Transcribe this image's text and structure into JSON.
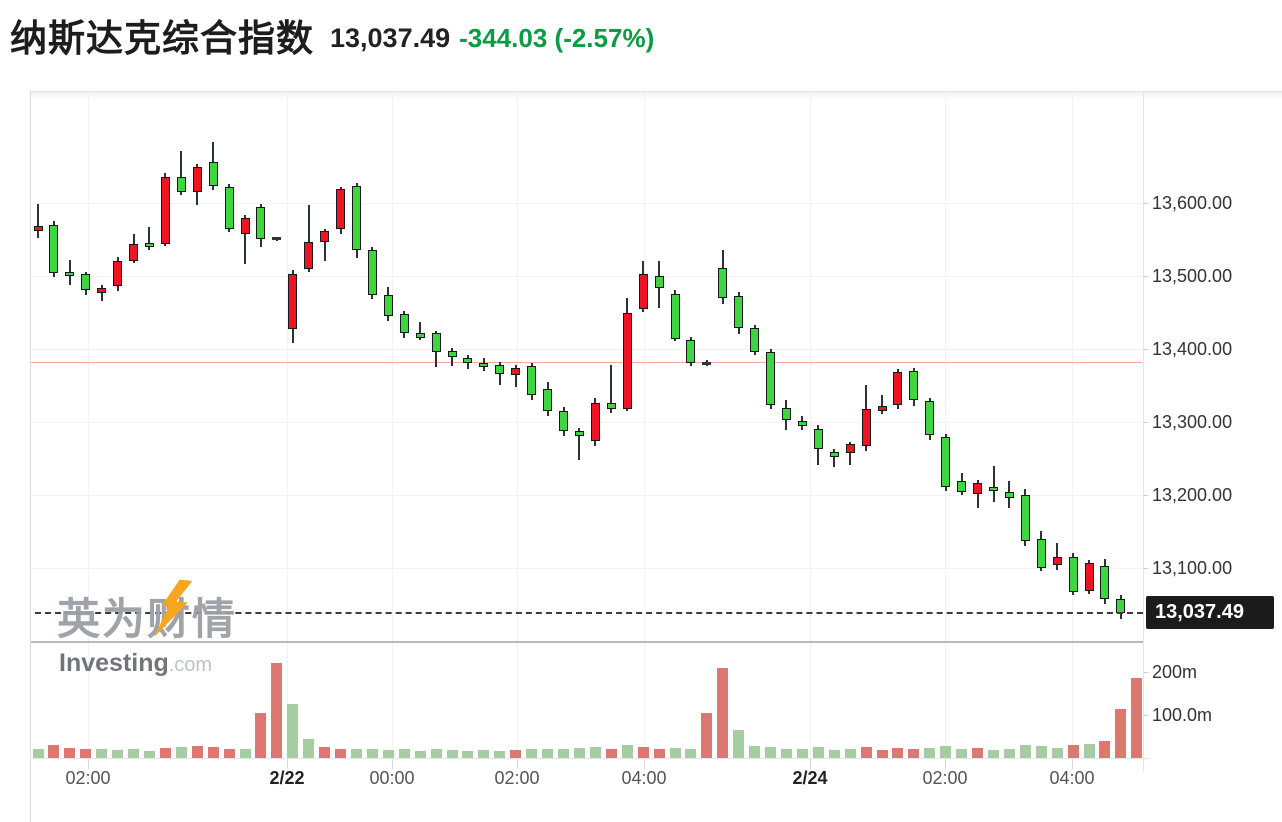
{
  "header": {
    "title": "纳斯达克综合指数",
    "price": "13,037.49",
    "change": "-344.03 (-2.57%)",
    "change_color": "#0a9b43"
  },
  "watermark": {
    "cjk": "英为财情",
    "brand": "Investing",
    "tld": ".com",
    "bolt_color": "#f6a51d"
  },
  "chart_data": {
    "type": "candlestick+volume",
    "symbol": "纳斯达克综合指数",
    "interval": "15min",
    "last_price": 13037.49,
    "prev_close": 13381.52,
    "price_badge_label": "13,037.49",
    "y_axis": {
      "tick_labels": [
        "13,600.00",
        "13,500.00",
        "13,400.00",
        "13,300.00",
        "13,200.00",
        "13,100.00"
      ],
      "tick_values": [
        13600,
        13500,
        13400,
        13300,
        13200,
        13100
      ]
    },
    "volume_axis": {
      "tick_labels": [
        "200m",
        "100.0m"
      ],
      "tick_values": [
        200,
        100
      ],
      "unit": "millions"
    },
    "x_ticks": [
      {
        "label": "02:00",
        "kind": "time"
      },
      {
        "label": "2/22",
        "kind": "date"
      },
      {
        "label": "00:00",
        "kind": "time"
      },
      {
        "label": "02:00",
        "kind": "time"
      },
      {
        "label": "04:00",
        "kind": "time"
      },
      {
        "label": "2/24",
        "kind": "date"
      },
      {
        "label": "02:00",
        "kind": "time"
      },
      {
        "label": "04:00",
        "kind": "time"
      }
    ],
    "colors": {
      "up": "#f01423",
      "down": "#3fd53f",
      "doji": "#333333",
      "vol_up": "#db7872",
      "vol_down": "#a6cda2",
      "prev_close_line": "#f7a8a3",
      "last_price_line": "#3c3c3c"
    },
    "candles": [
      [
        13562,
        13598,
        13552,
        13568
      ],
      [
        13570,
        13575,
        13498,
        13504
      ],
      [
        13505,
        13522,
        13488,
        13500
      ],
      [
        13502,
        13506,
        13474,
        13480
      ],
      [
        13477,
        13488,
        13466,
        13484
      ],
      [
        13486,
        13526,
        13479,
        13521
      ],
      [
        13521,
        13558,
        13518,
        13544
      ],
      [
        13545,
        13567,
        13536,
        13540
      ],
      [
        13544,
        13641,
        13541,
        13636
      ],
      [
        13635,
        13671,
        13611,
        13615
      ],
      [
        13615,
        13654,
        13597,
        13650
      ],
      [
        13656,
        13684,
        13618,
        13623
      ],
      [
        13622,
        13626,
        13560,
        13564
      ],
      [
        13558,
        13583,
        13517,
        13579
      ],
      [
        13594,
        13598,
        13539,
        13551
      ],
      [
        13551,
        13554,
        13548,
        13551
      ],
      [
        13427,
        13508,
        13408,
        13502
      ],
      [
        13510,
        13597,
        13505,
        13546
      ],
      [
        13546,
        13565,
        13520,
        13561
      ],
      [
        13564,
        13622,
        13558,
        13619
      ],
      [
        13624,
        13627,
        13524,
        13536
      ],
      [
        13535,
        13540,
        13468,
        13474
      ],
      [
        13474,
        13485,
        13438,
        13445
      ],
      [
        13448,
        13452,
        13415,
        13421
      ],
      [
        13421,
        13437,
        13412,
        13415
      ],
      [
        13421,
        13425,
        13375,
        13395
      ],
      [
        13397,
        13401,
        13376,
        13389
      ],
      [
        13388,
        13392,
        13372,
        13381
      ],
      [
        13381,
        13388,
        13370,
        13375
      ],
      [
        13378,
        13382,
        13351,
        13366
      ],
      [
        13364,
        13378,
        13347,
        13374
      ],
      [
        13376,
        13380,
        13330,
        13337
      ],
      [
        13345,
        13355,
        13308,
        13315
      ],
      [
        13315,
        13320,
        13280,
        13287
      ],
      [
        13287,
        13292,
        13247,
        13281
      ],
      [
        13274,
        13333,
        13267,
        13326
      ],
      [
        13326,
        13378,
        13312,
        13318
      ],
      [
        13318,
        13470,
        13315,
        13449
      ],
      [
        13454,
        13521,
        13450,
        13503
      ],
      [
        13500,
        13520,
        13456,
        13484
      ],
      [
        13475,
        13480,
        13410,
        13414
      ],
      [
        13412,
        13416,
        13376,
        13380
      ],
      [
        13380,
        13384,
        13377,
        13380
      ],
      [
        13511,
        13535,
        13462,
        13469
      ],
      [
        13472,
        13478,
        13420,
        13428
      ],
      [
        13428,
        13432,
        13392,
        13396
      ],
      [
        13396,
        13400,
        13318,
        13323
      ],
      [
        13319,
        13330,
        13289,
        13302
      ],
      [
        13301,
        13308,
        13288,
        13294
      ],
      [
        13290,
        13296,
        13240,
        13262
      ],
      [
        13259,
        13263,
        13238,
        13251
      ],
      [
        13257,
        13272,
        13240,
        13270
      ],
      [
        13266,
        13350,
        13260,
        13318
      ],
      [
        13315,
        13336,
        13310,
        13321
      ],
      [
        13323,
        13372,
        13318,
        13368
      ],
      [
        13369,
        13373,
        13322,
        13330
      ],
      [
        13329,
        13333,
        13275,
        13282
      ],
      [
        13279,
        13283,
        13205,
        13211
      ],
      [
        13219,
        13230,
        13200,
        13204
      ],
      [
        13201,
        13220,
        13182,
        13216
      ],
      [
        13211,
        13239,
        13190,
        13206
      ],
      [
        13203,
        13219,
        13182,
        13196
      ],
      [
        13200,
        13208,
        13130,
        13136
      ],
      [
        13139,
        13150,
        13095,
        13099
      ],
      [
        13103,
        13133,
        13096,
        13114
      ],
      [
        13114,
        13120,
        13062,
        13067
      ],
      [
        13068,
        13110,
        13064,
        13106
      ],
      [
        13102,
        13112,
        13050,
        13057
      ],
      [
        13057,
        13062,
        13030,
        13037.49
      ],
      null
    ],
    "volumes": [
      22,
      30,
      24,
      22,
      20,
      18,
      20,
      16,
      24,
      26,
      28,
      26,
      22,
      20,
      105,
      220,
      125,
      45,
      25,
      20,
      22,
      20,
      18,
      20,
      16,
      20,
      18,
      16,
      18,
      16,
      18,
      20,
      22,
      20,
      24,
      26,
      20,
      30,
      26,
      22,
      24,
      22,
      105,
      210,
      65,
      28,
      26,
      22,
      20,
      26,
      18,
      20,
      26,
      18,
      24,
      20,
      24,
      28,
      20,
      24,
      18,
      20,
      30,
      28,
      24,
      30,
      33,
      40,
      115,
      185
    ],
    "volume_colors": "grrrggggrgrrrgrrggrrggggggggggrgggggrgrrggrrggggggggrrrrgggrgggggrgrrr"
  }
}
